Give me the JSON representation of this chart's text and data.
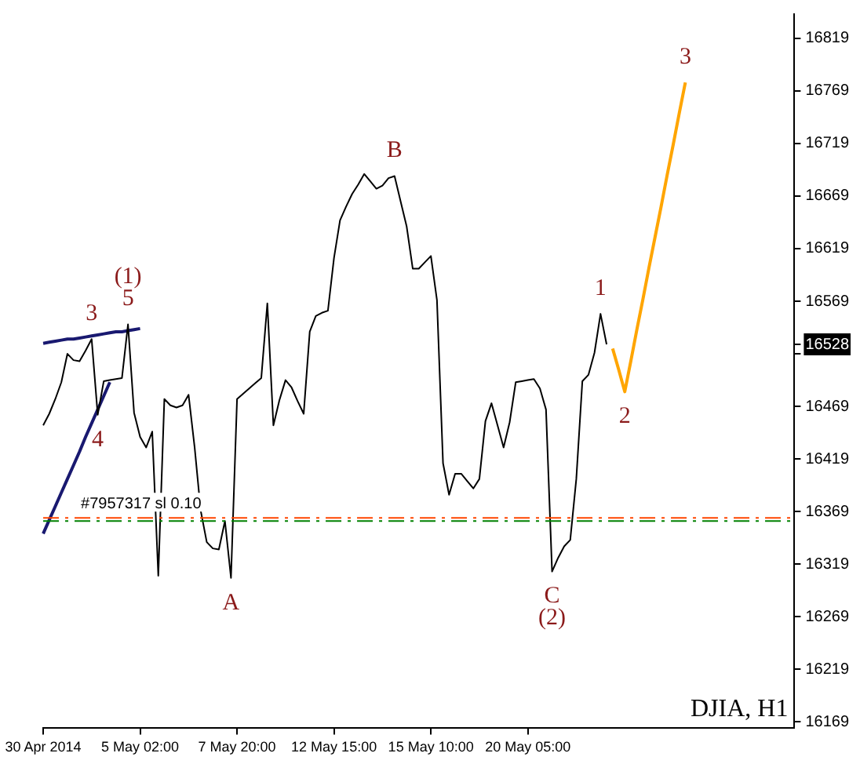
{
  "chart_data": {
    "type": "line",
    "title": "DJIA, H1",
    "ylim": [
      16163,
      16842
    ],
    "categories": [
      "30 Apr 2014",
      null,
      null,
      null,
      null,
      null,
      null,
      null,
      null,
      null,
      null,
      null,
      null,
      null,
      null,
      null,
      "5 May 02:00",
      null,
      null,
      null,
      null,
      null,
      null,
      null,
      null,
      null,
      null,
      null,
      null,
      null,
      null,
      null,
      "7 May 20:00",
      null,
      null,
      null,
      null,
      null,
      null,
      null,
      null,
      null,
      null,
      null,
      null,
      null,
      null,
      null,
      "12 May 15:00",
      null,
      null,
      null,
      null,
      null,
      null,
      null,
      null,
      null,
      null,
      null,
      null,
      null,
      null,
      null,
      "15 May 10:00",
      null,
      null,
      null,
      null,
      null,
      null,
      null,
      null,
      null,
      null,
      null,
      null,
      null,
      null,
      null,
      "20 May 05:00",
      null,
      null,
      null,
      null,
      null,
      null,
      null,
      null,
      null,
      null,
      null,
      null,
      null,
      null,
      null,
      null,
      null,
      null,
      null,
      null,
      null,
      null,
      null,
      null,
      null,
      null,
      null,
      null,
      null,
      null,
      null,
      null,
      null,
      null,
      null,
      null,
      null,
      null,
      null,
      null,
      null,
      null,
      null,
      null
    ],
    "yticks": [
      16169,
      16219,
      16269,
      16319,
      16369,
      16419,
      16469,
      {
        "value": 16519,
        "label": null
      },
      16528,
      16569,
      16619,
      16669,
      16719,
      16769,
      16819
    ],
    "marker": "none",
    "legend": false,
    "series": [
      {
        "color": "#000000",
        "values": [
          16451,
          16462,
          16476,
          16492,
          16519,
          16513,
          16512,
          16522,
          16533,
          16461,
          16493,
          16494,
          16495,
          16496,
          16547,
          16463,
          16440,
          16430,
          16445,
          16308,
          16476,
          16470,
          16468,
          16470,
          16480,
          16430,
          16370,
          16340,
          16334,
          16333,
          16360,
          16306,
          16476,
          16481,
          16486,
          16491,
          16496,
          16567,
          16451,
          16475,
          16494,
          16487,
          16474,
          16462,
          16540,
          16555,
          16558,
          16560,
          16610,
          16646,
          16659,
          16671,
          16680,
          16690,
          16683,
          16676,
          16679,
          16686,
          16688,
          16664,
          16640,
          16600,
          16600,
          16606,
          16612,
          16570,
          16415,
          16385,
          16405,
          16405,
          16398,
          16391,
          16400,
          16455,
          16472,
          16451,
          16430,
          16454,
          16492,
          16493,
          16494,
          16495,
          16486,
          16466,
          16312,
          16325,
          16336,
          16342,
          16400,
          16493,
          16499,
          16520,
          16557,
          16528,
          null,
          null,
          null,
          null,
          null,
          null,
          null,
          null,
          null,
          null,
          null,
          null,
          null,
          null,
          null,
          null,
          null,
          null,
          null,
          null,
          null,
          null,
          null,
          null,
          null,
          null,
          null,
          null,
          null,
          null,
          null
        ]
      },
      {
        "color": "#ffa500",
        "values": [
          null,
          null,
          null,
          null,
          null,
          null,
          null,
          null,
          null,
          null,
          null,
          null,
          null,
          null,
          null,
          null,
          null,
          null,
          null,
          null,
          null,
          null,
          null,
          null,
          null,
          null,
          null,
          null,
          null,
          null,
          null,
          null,
          null,
          null,
          null,
          null,
          null,
          null,
          null,
          null,
          null,
          null,
          null,
          null,
          null,
          null,
          null,
          null,
          null,
          null,
          null,
          null,
          null,
          null,
          null,
          null,
          null,
          null,
          null,
          null,
          null,
          null,
          null,
          null,
          null,
          null,
          null,
          null,
          null,
          null,
          null,
          null,
          null,
          null,
          null,
          null,
          null,
          null,
          null,
          null,
          null,
          null,
          null,
          null,
          null,
          null,
          null,
          null,
          null,
          null,
          null,
          null,
          null,
          null,
          16524,
          16504,
          16483,
          16512,
          16542,
          16571,
          16601,
          16630,
          16659,
          16689,
          16718,
          16748,
          16777,
          null,
          null,
          null,
          null,
          null,
          null,
          null,
          null,
          null,
          null,
          null,
          null,
          null,
          null,
          null,
          null,
          null,
          null
        ]
      },
      {
        "color": "#191970",
        "values": [
          16529,
          16530,
          16531,
          16532,
          16533,
          16533,
          16534,
          16535,
          16536,
          16537,
          16538,
          16539,
          16540,
          16540,
          16541,
          16542,
          16543,
          null,
          null,
          null,
          null,
          null,
          null,
          null,
          null,
          null,
          null,
          null,
          null,
          null,
          null,
          null,
          null,
          null,
          null,
          null,
          null,
          null,
          null,
          null,
          null,
          null,
          null,
          null,
          null,
          null,
          null,
          null,
          null,
          null,
          null,
          null,
          null,
          null,
          null,
          null,
          null,
          null,
          null,
          null,
          null,
          null,
          null,
          null,
          null,
          null,
          null,
          null,
          null,
          null,
          null,
          null,
          null,
          null,
          null,
          null,
          null,
          null,
          null,
          null,
          null,
          null,
          null,
          null,
          null,
          null,
          null,
          null,
          null,
          null,
          null,
          null,
          null,
          null,
          null,
          null,
          null,
          null,
          null,
          null,
          null,
          null,
          null,
          null,
          null,
          null,
          null,
          null,
          null,
          null,
          null,
          null,
          null,
          null,
          null,
          null,
          null,
          null,
          null,
          null,
          null,
          null,
          null,
          null,
          null
        ]
      },
      {
        "color": "#191970",
        "values": [
          16348,
          16361,
          16374,
          16387,
          16400,
          16413,
          16426,
          16440,
          16453,
          16466,
          16479,
          16492,
          null,
          null,
          null,
          null,
          null,
          null,
          null,
          null,
          null,
          null,
          null,
          null,
          null,
          null,
          null,
          null,
          null,
          null,
          null,
          null,
          null,
          null,
          null,
          null,
          null,
          null,
          null,
          null,
          null,
          null,
          null,
          null,
          null,
          null,
          null,
          null,
          null,
          null,
          null,
          null,
          null,
          null,
          null,
          null,
          null,
          null,
          null,
          null,
          null,
          null,
          null,
          null,
          null,
          null,
          null,
          null,
          null,
          null,
          null,
          null,
          null,
          null,
          null,
          null,
          null,
          null,
          null,
          null,
          null,
          null,
          null,
          null,
          null,
          null,
          null,
          null,
          null,
          null,
          null,
          null,
          null,
          null,
          null,
          null,
          null,
          null,
          null,
          null,
          null,
          null,
          null,
          null,
          null,
          null,
          null,
          null,
          null,
          null,
          null,
          null,
          null,
          null,
          null,
          null,
          null,
          null,
          null,
          null,
          null,
          null,
          null,
          null,
          null
        ]
      }
    ],
    "ref_lines": [
      {
        "axis": "y",
        "value": 16363,
        "label": "#7957317 sl 0.10",
        "color": "#ff4500",
        "line_style": "dashed"
      },
      {
        "axis": "y",
        "value": 16360,
        "color": "#008000",
        "line_style": "dashed"
      }
    ],
    "annotations": [
      {
        "text": "3",
        "y": 16533
      },
      {
        "text": "4",
        "y": 16461
      },
      {
        "text": "5",
        "y": 16547
      },
      {
        "text": "(1)",
        "y": 16547
      },
      {
        "text": "A",
        "y": 16306
      },
      {
        "text": "B",
        "y": 16688
      },
      {
        "text": "C",
        "y": 16312
      },
      {
        "text": "(2)",
        "y": 16312
      },
      {
        "text": "1",
        "y": 16557
      },
      {
        "text": "2",
        "y": 16483
      },
      {
        "text": "3",
        "y": 16777
      }
    ]
  }
}
